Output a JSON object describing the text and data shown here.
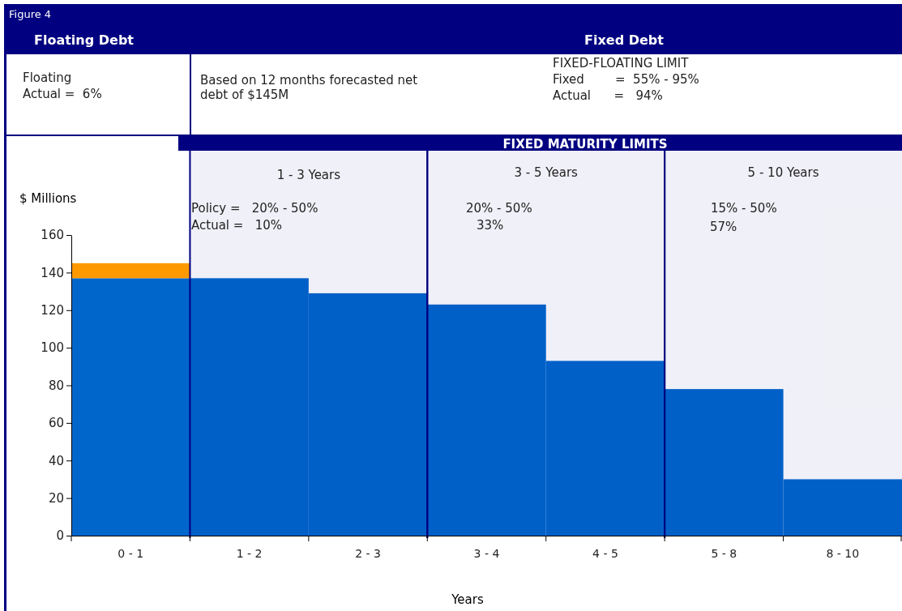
{
  "chart_data": {
    "type": "bar",
    "stacked": true,
    "title": "Figure 4",
    "xlabel": "Years",
    "ylabel": "$ Millions",
    "categories": [
      "0 - 1",
      "1 - 2",
      "2 - 3",
      "3 - 4",
      "4 - 5",
      "5 - 8",
      "8 - 10"
    ],
    "series": [
      {
        "color": "#0066cc",
        "values": [
          137,
          137,
          129,
          123,
          93,
          78,
          30
        ]
      },
      {
        "color": "#ff9900",
        "values": [
          8,
          null,
          null,
          null,
          null,
          null,
          null
        ]
      }
    ],
    "bands": [
      {
        "axis": "x",
        "from": "1 - 2",
        "to": "2 - 3",
        "label": "1 - 3 Years",
        "color": "#000080"
      },
      {
        "axis": "x",
        "from": "3 - 4",
        "to": "4 - 5",
        "label": "3 - 5 Years",
        "color": "#000080"
      },
      {
        "axis": "x",
        "from": "5 - 8",
        "to": "8 - 10",
        "label": "5 - 10 Years",
        "color": "#000080"
      }
    ],
    "ylim": [
      0,
      160
    ],
    "yticks": [
      0,
      20,
      40,
      60,
      80,
      100,
      120,
      140,
      160
    ],
    "annotations": [
      "Floating Debt",
      "Fixed Debt",
      "Floating",
      "Actual =  6%",
      "Based on 12 months forecasted net",
      "debt of $145M",
      "FIXED-FLOATING LIMIT",
      "Fixed        =  55% - 95%",
      "Actual      =   94%",
      "FIXED MATURITY LIMITS",
      "Policy =   20% - 50%",
      "Actual =   10%",
      "20% - 50%",
      "33%",
      "15% - 50%",
      "57%"
    ]
  }
}
